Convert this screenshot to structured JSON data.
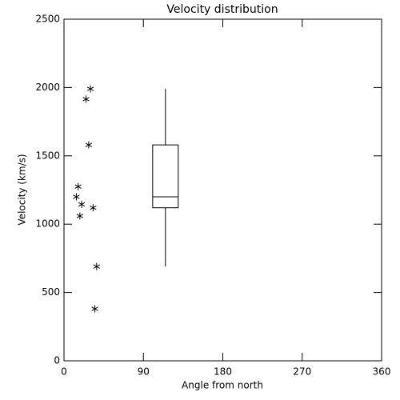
{
  "chart_data": {
    "type": "scatter",
    "title": "Velocity distribution",
    "x_label": "Angle from north",
    "y_label": "Velocity (km/s)",
    "x": [
      30,
      25,
      28,
      16,
      14,
      20,
      33,
      18,
      37,
      35
    ],
    "values": [
      1990,
      1915,
      1580,
      1275,
      1200,
      1145,
      1120,
      1060,
      690,
      380
    ],
    "color": "#000000",
    "box": {
      "x": 115,
      "width": 29,
      "whislo": 690,
      "q1": 1120,
      "med": 1200,
      "q3": 1580,
      "whishi": 1990
    },
    "xlim": [
      0,
      360
    ],
    "xticks": [
      0,
      90,
      180,
      270,
      360
    ],
    "ylim": [
      0,
      2500
    ],
    "yticks": [
      0,
      500,
      1000,
      1500,
      2000,
      2500
    ],
    "grid": false
  }
}
